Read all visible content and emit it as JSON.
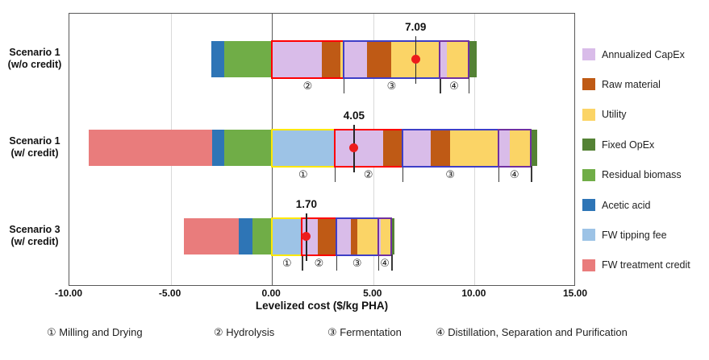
{
  "chart_data": {
    "type": "bar",
    "orientation": "horizontal-stacked",
    "title": "",
    "xlabel": "Levelized cost ($/kg PHA)",
    "xlim": [
      -10,
      15
    ],
    "grid": "vertical",
    "legend_position": "right",
    "xticks": [
      {
        "value": -10,
        "label": "-10.00"
      },
      {
        "value": -5,
        "label": "-5.00"
      },
      {
        "value": 0,
        "label": "0.00"
      },
      {
        "value": 5,
        "label": "5.00"
      },
      {
        "value": 10,
        "label": "10.00"
      },
      {
        "value": 15,
        "label": "15.00"
      }
    ],
    "categories": [
      {
        "name": "Annualized CapEx",
        "color": "#d9bce9"
      },
      {
        "name": "Raw material",
        "color": "#bf5a15"
      },
      {
        "name": "Utility",
        "color": "#fbd466"
      },
      {
        "name": "Fixed OpEx",
        "color": "#548235"
      },
      {
        "name": "Residual biomass",
        "color": "#70ad47"
      },
      {
        "name": "Acetic acid",
        "color": "#2e75b6"
      },
      {
        "name": "FW tipping fee",
        "color": "#9dc3e6"
      },
      {
        "name": "FW treatment credit",
        "color": "#e97c7c"
      }
    ],
    "process_sections": [
      {
        "symbol": "①",
        "name": "Milling and Drying",
        "outline_color": "#ffe800"
      },
      {
        "symbol": "②",
        "name": "Hydrolysis",
        "outline_color": "#fe0000"
      },
      {
        "symbol": "③",
        "name": "Fermentation",
        "outline_color": "#3e3ec6"
      },
      {
        "symbol": "④",
        "name": "Distillation, Separation and Purification",
        "outline_color": "#7030a0"
      }
    ],
    "rows": [
      {
        "key": "scenario-1-wo-credit",
        "label_lines": [
          "Scenario 1",
          "(w/o credit)"
        ],
        "net": {
          "value": 7.09,
          "label": "7.09"
        },
        "segments": [
          {
            "category": "Acetic acid",
            "start": -3.0,
            "end": -2.36
          },
          {
            "category": "Residual biomass",
            "start": -2.36,
            "end": 0
          },
          {
            "category": "Annualized CapEx",
            "start": 0,
            "end": 2.48
          },
          {
            "category": "Raw material",
            "start": 2.48,
            "end": 3.36
          },
          {
            "category": "Utility",
            "start": 3.36,
            "end": 3.52
          },
          {
            "category": "Annualized CapEx",
            "start": 3.52,
            "end": 4.7
          },
          {
            "category": "Raw material",
            "start": 4.7,
            "end": 5.9
          },
          {
            "category": "Utility",
            "start": 5.9,
            "end": 8.28
          },
          {
            "category": "Annualized CapEx",
            "start": 8.28,
            "end": 8.64
          },
          {
            "category": "Utility",
            "start": 8.64,
            "end": 9.69
          },
          {
            "category": "Fixed OpEx",
            "start": 9.69,
            "end": 10.09
          }
        ],
        "sections": [
          {
            "symbol": "②",
            "start": 0,
            "end": 3.52
          },
          {
            "symbol": "③",
            "start": 3.52,
            "end": 8.28
          },
          {
            "symbol": "④",
            "start": 8.28,
            "end": 9.69
          }
        ]
      },
      {
        "key": "scenario-1-w-credit",
        "label_lines": [
          "Scenario 1",
          "(w/ credit)"
        ],
        "net": {
          "value": 4.05,
          "label": "4.05"
        },
        "segments": [
          {
            "category": "FW treatment credit",
            "start": -9.05,
            "end": -2.96
          },
          {
            "category": "Acetic acid",
            "start": -2.96,
            "end": -2.36
          },
          {
            "category": "Residual biomass",
            "start": -2.36,
            "end": 0
          },
          {
            "category": "FW tipping fee",
            "start": 0,
            "end": 3.08
          },
          {
            "category": "Annualized CapEx",
            "start": 3.08,
            "end": 5.48
          },
          {
            "category": "Raw material",
            "start": 5.48,
            "end": 6.44
          },
          {
            "category": "Annualized CapEx",
            "start": 6.44,
            "end": 7.84
          },
          {
            "category": "Raw material",
            "start": 7.84,
            "end": 8.8
          },
          {
            "category": "Utility",
            "start": 8.8,
            "end": 11.16
          },
          {
            "category": "Annualized CapEx",
            "start": 11.16,
            "end": 11.72
          },
          {
            "category": "Utility",
            "start": 11.72,
            "end": 12.78
          },
          {
            "category": "Fixed OpEx",
            "start": 12.78,
            "end": 13.1
          }
        ],
        "sections": [
          {
            "symbol": "①",
            "start": 0,
            "end": 3.08
          },
          {
            "symbol": "②",
            "start": 3.08,
            "end": 6.44
          },
          {
            "symbol": "③",
            "start": 6.44,
            "end": 11.16
          },
          {
            "symbol": "④",
            "start": 11.16,
            "end": 12.78
          }
        ]
      },
      {
        "key": "scenario-3-w-credit",
        "label_lines": [
          "Scenario 3",
          "(w/ credit)"
        ],
        "net": {
          "value": 1.7,
          "label": "1.70"
        },
        "segments": [
          {
            "category": "FW treatment credit",
            "start": -4.36,
            "end": -1.64
          },
          {
            "category": "Acetic acid",
            "start": -1.64,
            "end": -0.96
          },
          {
            "category": "Residual biomass",
            "start": -0.96,
            "end": 0
          },
          {
            "category": "FW tipping fee",
            "start": 0,
            "end": 1.48
          },
          {
            "category": "Annualized CapEx",
            "start": 1.48,
            "end": 2.28
          },
          {
            "category": "Raw material",
            "start": 2.28,
            "end": 3.16
          },
          {
            "category": "Annualized CapEx",
            "start": 3.16,
            "end": 3.88
          },
          {
            "category": "Raw material",
            "start": 3.88,
            "end": 4.2
          },
          {
            "category": "Utility",
            "start": 4.2,
            "end": 5.24
          },
          {
            "category": "Annualized CapEx",
            "start": 5.24,
            "end": 5.38
          },
          {
            "category": "Utility",
            "start": 5.38,
            "end": 5.9
          },
          {
            "category": "Fixed OpEx",
            "start": 5.9,
            "end": 6.06
          }
        ],
        "sections": [
          {
            "symbol": "①",
            "start": 0,
            "end": 1.48
          },
          {
            "symbol": "②",
            "start": 1.48,
            "end": 3.16
          },
          {
            "symbol": "③",
            "start": 3.16,
            "end": 5.24
          },
          {
            "symbol": "④",
            "start": 5.24,
            "end": 5.9
          }
        ]
      }
    ],
    "net_marker_color": "#ed1c1c"
  }
}
